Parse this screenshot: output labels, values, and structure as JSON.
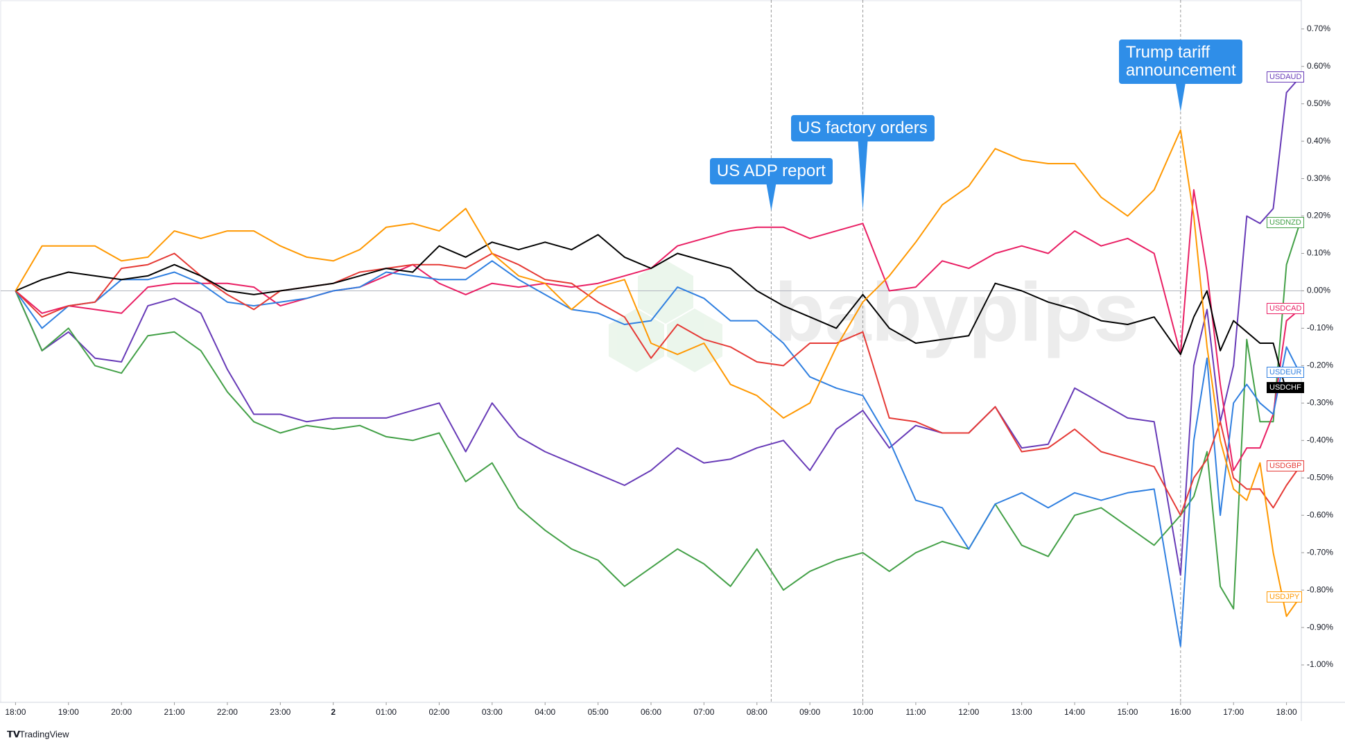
{
  "chart_data": {
    "type": "line",
    "x": [
      0,
      0.5,
      1,
      1.5,
      2,
      2.5,
      3,
      3.5,
      4,
      4.5,
      5,
      5.5,
      6,
      6.5,
      7,
      7.5,
      8,
      8.5,
      9,
      9.5,
      10,
      10.5,
      11,
      11.5,
      12,
      12.5,
      13,
      13.5,
      14,
      14.5,
      15,
      15.5,
      16,
      16.5,
      17,
      17.5,
      18,
      18.5,
      19,
      19.5,
      20,
      20.5,
      21,
      21.5,
      22,
      22.25,
      22.5,
      22.75,
      23,
      23.25,
      23.5,
      23.75,
      24,
      24.25
    ],
    "xlim": [
      -0.28,
      24.28
    ],
    "xticks": [
      {
        "value": 0,
        "label": "18:00"
      },
      {
        "value": 1,
        "label": "19:00"
      },
      {
        "value": 2,
        "label": "20:00"
      },
      {
        "value": 3,
        "label": "21:00"
      },
      {
        "value": 4,
        "label": "22:00"
      },
      {
        "value": 5,
        "label": "23:00"
      },
      {
        "value": 6,
        "label": "2"
      },
      {
        "value": 7,
        "label": "01:00"
      },
      {
        "value": 8,
        "label": "02:00"
      },
      {
        "value": 9,
        "label": "03:00"
      },
      {
        "value": 10,
        "label": "04:00"
      },
      {
        "value": 11,
        "label": "05:00"
      },
      {
        "value": 12,
        "label": "06:00"
      },
      {
        "value": 13,
        "label": "07:00"
      },
      {
        "value": 14,
        "label": "08:00"
      },
      {
        "value": 15,
        "label": "09:00"
      },
      {
        "value": 16,
        "label": "10:00"
      },
      {
        "value": 17,
        "label": "11:00"
      },
      {
        "value": 18,
        "label": "12:00"
      },
      {
        "value": 19,
        "label": "13:00"
      },
      {
        "value": 20,
        "label": "14:00"
      },
      {
        "value": 21,
        "label": "15:00"
      },
      {
        "value": 22,
        "label": "16:00"
      },
      {
        "value": 23,
        "label": "17:00"
      },
      {
        "value": 24,
        "label": "18:00"
      }
    ],
    "ylim": [
      -1.1,
      0.77
    ],
    "yticks": [
      {
        "value": 0.7,
        "label": "0.70%"
      },
      {
        "value": 0.6,
        "label": "0.60%"
      },
      {
        "value": 0.5,
        "label": "0.50%"
      },
      {
        "value": 0.4,
        "label": "0.40%"
      },
      {
        "value": 0.3,
        "label": "0.30%"
      },
      {
        "value": 0.2,
        "label": "0.20%"
      },
      {
        "value": 0.1,
        "label": "0.10%"
      },
      {
        "value": 0,
        "label": "0.00%"
      },
      {
        "value": -0.1,
        "label": "-0.10%"
      },
      {
        "value": -0.2,
        "label": "-0.20%"
      },
      {
        "value": -0.3,
        "label": "-0.30%"
      },
      {
        "value": -0.4,
        "label": "-0.40%"
      },
      {
        "value": -0.5,
        "label": "-0.50%"
      },
      {
        "value": -0.6,
        "label": "-0.60%"
      },
      {
        "value": -0.7,
        "label": "-0.70%"
      },
      {
        "value": -0.8,
        "label": "-0.80%"
      },
      {
        "value": -0.9,
        "label": "-0.90%"
      },
      {
        "value": -1.0,
        "label": "-1.00%"
      }
    ],
    "zero_line": true,
    "series": [
      {
        "name": "USDAUD",
        "color": "#673ab7",
        "values": [
          0,
          -0.16,
          -0.11,
          -0.18,
          -0.19,
          -0.04,
          -0.02,
          -0.06,
          -0.21,
          -0.33,
          -0.33,
          -0.35,
          -0.34,
          -0.34,
          -0.34,
          -0.32,
          -0.3,
          -0.43,
          -0.3,
          -0.39,
          -0.43,
          -0.46,
          -0.49,
          -0.52,
          -0.48,
          -0.42,
          -0.46,
          -0.45,
          -0.42,
          -0.4,
          -0.48,
          -0.37,
          -0.32,
          -0.42,
          -0.36,
          -0.38,
          -0.38,
          -0.31,
          -0.42,
          -0.41,
          -0.26,
          -0.3,
          -0.34,
          -0.35,
          -0.76,
          -0.2,
          -0.05,
          -0.35,
          -0.2,
          0.2,
          0.18,
          0.22,
          0.53,
          0.57
        ]
      },
      {
        "name": "USDNZD",
        "color": "#43a047",
        "values": [
          0,
          -0.16,
          -0.1,
          -0.2,
          -0.22,
          -0.12,
          -0.11,
          -0.16,
          -0.27,
          -0.35,
          -0.38,
          -0.36,
          -0.37,
          -0.36,
          -0.39,
          -0.4,
          -0.38,
          -0.51,
          -0.46,
          -0.58,
          -0.64,
          -0.69,
          -0.72,
          -0.79,
          -0.74,
          -0.69,
          -0.73,
          -0.79,
          -0.69,
          -0.8,
          -0.75,
          -0.72,
          -0.7,
          -0.75,
          -0.7,
          -0.67,
          -0.69,
          -0.57,
          -0.68,
          -0.71,
          -0.6,
          -0.58,
          -0.63,
          -0.68,
          -0.6,
          -0.55,
          -0.43,
          -0.79,
          -0.85,
          -0.13,
          -0.35,
          -0.35,
          0.07,
          0.18
        ]
      },
      {
        "name": "USDCAD",
        "color": "#e91e63",
        "values": [
          0,
          -0.06,
          -0.04,
          -0.05,
          -0.06,
          0.01,
          0.02,
          0.02,
          0.02,
          0.01,
          -0.04,
          -0.02,
          0,
          0.01,
          0.04,
          0.07,
          0.02,
          -0.01,
          0.02,
          0.01,
          0.02,
          0.01,
          0.02,
          0.04,
          0.06,
          0.12,
          0.14,
          0.16,
          0.17,
          0.17,
          0.14,
          0.16,
          0.18,
          0,
          0.01,
          0.08,
          0.06,
          0.1,
          0.12,
          0.1,
          0.16,
          0.12,
          0.14,
          0.1,
          -0.17,
          0.27,
          0.05,
          -0.25,
          -0.48,
          -0.42,
          -0.42,
          -0.33,
          -0.08,
          -0.05
        ]
      },
      {
        "name": "USDEUR",
        "color": "#2f7fe0",
        "values": [
          0,
          -0.1,
          -0.04,
          -0.03,
          0.03,
          0.03,
          0.05,
          0.02,
          -0.03,
          -0.04,
          -0.03,
          -0.02,
          0,
          0.01,
          0.05,
          0.04,
          0.03,
          0.03,
          0.08,
          0.03,
          -0.01,
          -0.05,
          -0.06,
          -0.09,
          -0.08,
          0.01,
          -0.02,
          -0.08,
          -0.08,
          -0.14,
          -0.23,
          -0.26,
          -0.28,
          -0.4,
          -0.56,
          -0.58,
          -0.69,
          -0.57,
          -0.54,
          -0.58,
          -0.54,
          -0.56,
          -0.54,
          -0.53,
          -0.95,
          -0.4,
          -0.18,
          -0.6,
          -0.3,
          -0.25,
          -0.3,
          -0.33,
          -0.15,
          -0.22
        ]
      },
      {
        "name": "USDGBP",
        "color": "#e53935",
        "values": [
          0,
          -0.07,
          -0.04,
          -0.03,
          0.06,
          0.07,
          0.1,
          0.04,
          -0.01,
          -0.05,
          0,
          0.01,
          0.02,
          0.05,
          0.06,
          0.07,
          0.07,
          0.06,
          0.1,
          0.07,
          0.03,
          0.02,
          -0.03,
          -0.07,
          -0.18,
          -0.09,
          -0.13,
          -0.15,
          -0.19,
          -0.2,
          -0.14,
          -0.14,
          -0.11,
          -0.34,
          -0.35,
          -0.38,
          -0.38,
          -0.31,
          -0.43,
          -0.42,
          -0.37,
          -0.43,
          -0.45,
          -0.47,
          -0.6,
          -0.5,
          -0.45,
          -0.35,
          -0.5,
          -0.53,
          -0.53,
          -0.58,
          -0.52,
          -0.47
        ]
      },
      {
        "name": "USDCHF",
        "color": "#000000",
        "values": [
          0,
          0.03,
          0.05,
          0.04,
          0.03,
          0.04,
          0.07,
          0.04,
          0,
          -0.01,
          0,
          0.01,
          0.02,
          0.04,
          0.06,
          0.05,
          0.12,
          0.09,
          0.13,
          0.11,
          0.13,
          0.11,
          0.15,
          0.09,
          0.06,
          0.1,
          0.08,
          0.06,
          0,
          -0.04,
          -0.07,
          -0.1,
          -0.01,
          -0.1,
          -0.14,
          -0.13,
          -0.12,
          0.02,
          0,
          -0.03,
          -0.05,
          -0.08,
          -0.09,
          -0.07,
          -0.17,
          -0.07,
          0,
          -0.16,
          -0.08,
          -0.11,
          -0.14,
          -0.14,
          -0.27,
          -0.26
        ]
      },
      {
        "name": "USDJPY",
        "color": "#ff9800",
        "values": [
          0,
          0.12,
          0.12,
          0.12,
          0.08,
          0.09,
          0.16,
          0.14,
          0.16,
          0.16,
          0.12,
          0.09,
          0.08,
          0.11,
          0.17,
          0.18,
          0.16,
          0.22,
          0.1,
          0.04,
          0.02,
          -0.05,
          0.01,
          0.03,
          -0.14,
          -0.17,
          -0.14,
          -0.25,
          -0.28,
          -0.34,
          -0.3,
          -0.15,
          -0.03,
          0.04,
          0.13,
          0.23,
          0.28,
          0.38,
          0.35,
          0.34,
          0.34,
          0.25,
          0.2,
          0.27,
          0.43,
          0.2,
          -0.15,
          -0.4,
          -0.53,
          -0.56,
          -0.46,
          -0.7,
          -0.87,
          -0.82
        ]
      }
    ],
    "annotations": [
      {
        "text": "US ADP report",
        "x": 14.27
      },
      {
        "text": "US factory orders",
        "x": 16
      },
      {
        "text": "Trump tariff announcement",
        "x": 22
      }
    ],
    "watermark": "babypips",
    "branding": "TradingView"
  }
}
